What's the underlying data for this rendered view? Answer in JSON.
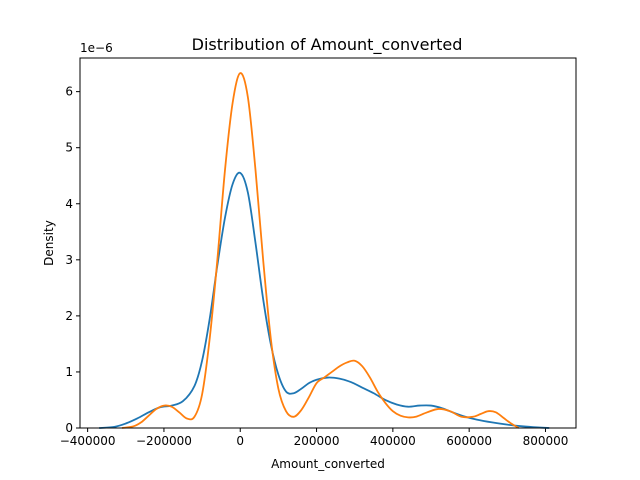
{
  "chart_data": {
    "type": "line",
    "title": "Distribution of Amount_converted",
    "xlabel": "Amount_converted",
    "ylabel": "Density",
    "y_scale_label": "1e−6",
    "xlim": [
      -420000,
      880000
    ],
    "ylim": [
      0,
      6.6
    ],
    "grid": false,
    "legend": "none",
    "xticks": [
      -400000,
      -200000,
      0,
      200000,
      400000,
      600000,
      800000
    ],
    "xtick_labels": [
      "−400000",
      "−200000",
      "0",
      "200000",
      "400000",
      "600000",
      "800000"
    ],
    "yticks": [
      0,
      1,
      2,
      3,
      4,
      5,
      6
    ],
    "ytick_labels": [
      "0",
      "1",
      "2",
      "3",
      "4",
      "5",
      "6"
    ],
    "series": [
      {
        "color": "#1f77b4",
        "x": [
          -370000,
          -330000,
          -300000,
          -270000,
          -240000,
          -210000,
          -180000,
          -150000,
          -120000,
          -100000,
          -80000,
          -60000,
          -40000,
          -20000,
          0,
          20000,
          40000,
          60000,
          80000,
          100000,
          120000,
          140000,
          160000,
          180000,
          200000,
          230000,
          260000,
          290000,
          320000,
          350000,
          380000,
          410000,
          440000,
          470000,
          500000,
          530000,
          560000,
          590000,
          620000,
          660000,
          700000,
          740000,
          780000,
          810000
        ],
        "y": [
          0.0,
          0.02,
          0.08,
          0.17,
          0.28,
          0.37,
          0.4,
          0.48,
          0.75,
          1.2,
          1.95,
          2.9,
          3.75,
          4.35,
          4.55,
          4.2,
          3.3,
          2.3,
          1.5,
          0.95,
          0.65,
          0.62,
          0.7,
          0.8,
          0.86,
          0.9,
          0.88,
          0.82,
          0.72,
          0.62,
          0.5,
          0.42,
          0.38,
          0.4,
          0.4,
          0.35,
          0.27,
          0.2,
          0.15,
          0.1,
          0.06,
          0.03,
          0.01,
          0.0
        ]
      },
      {
        "color": "#ff7f0e",
        "x": [
          -310000,
          -280000,
          -260000,
          -240000,
          -220000,
          -200000,
          -180000,
          -160000,
          -140000,
          -120000,
          -100000,
          -80000,
          -60000,
          -40000,
          -20000,
          0,
          20000,
          40000,
          60000,
          80000,
          100000,
          120000,
          140000,
          160000,
          180000,
          200000,
          220000,
          240000,
          260000,
          280000,
          300000,
          320000,
          340000,
          360000,
          380000,
          400000,
          420000,
          440000,
          460000,
          490000,
          520000,
          550000,
          580000,
          610000,
          630000,
          650000,
          670000,
          690000,
          710000,
          730000
        ],
        "y": [
          0.0,
          0.03,
          0.1,
          0.22,
          0.34,
          0.4,
          0.38,
          0.28,
          0.17,
          0.2,
          0.6,
          1.6,
          3.0,
          4.6,
          5.8,
          6.33,
          5.9,
          4.6,
          3.0,
          1.6,
          0.7,
          0.3,
          0.2,
          0.32,
          0.55,
          0.8,
          0.9,
          1.0,
          1.1,
          1.17,
          1.2,
          1.1,
          0.9,
          0.65,
          0.45,
          0.3,
          0.22,
          0.19,
          0.2,
          0.28,
          0.34,
          0.3,
          0.2,
          0.2,
          0.25,
          0.3,
          0.28,
          0.18,
          0.08,
          0.0
        ]
      }
    ]
  }
}
